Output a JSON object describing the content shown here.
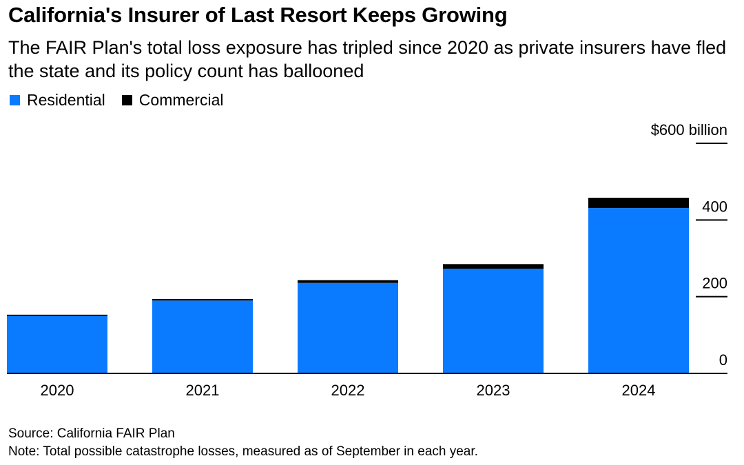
{
  "colors": {
    "residential": "#0a7bff",
    "commercial": "#000000",
    "axis": "#000000"
  },
  "chart_data": {
    "type": "bar",
    "stacked": true,
    "title": "California's Insurer of Last Resort Keeps Growing",
    "subtitle": "The FAIR Plan's total loss exposure has tripled since 2020 as private insurers have fled the state and its policy count has ballooned",
    "categories": [
      "2020",
      "2021",
      "2022",
      "2023",
      "2024"
    ],
    "series": [
      {
        "name": "Residential",
        "values": [
          150,
          190,
          236,
          273,
          431
        ]
      },
      {
        "name": "Commercial",
        "values": [
          3,
          4,
          7,
          12,
          27
        ]
      }
    ],
    "ylim": [
      0,
      600
    ],
    "yticks": [
      0,
      200,
      400,
      600
    ],
    "ytick_labels": [
      "0",
      "200",
      "400",
      "$600 billion"
    ],
    "legend_position": "top-left",
    "xlabel": "",
    "ylabel": ""
  },
  "footer": {
    "source": "Source: California FAIR Plan",
    "note": "Note: Total possible catastrophe losses, measured as of September in each year."
  }
}
